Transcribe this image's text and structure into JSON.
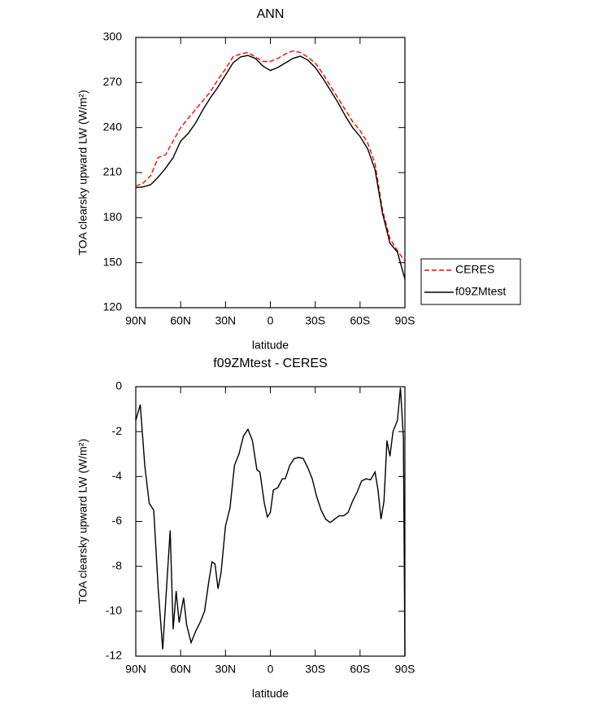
{
  "chart_data": [
    {
      "type": "line",
      "title": "ANN",
      "xlabel": "latitude",
      "ylabel": "TOA clearsky upward LW (W/m²)",
      "x": [
        90,
        85,
        80,
        75,
        70,
        65,
        60,
        55,
        50,
        45,
        40,
        35,
        30,
        25,
        20,
        15,
        10,
        5,
        0,
        -5,
        -10,
        -15,
        -20,
        -25,
        -30,
        -35,
        -40,
        -45,
        -50,
        -55,
        -60,
        -65,
        -70,
        -75,
        -80,
        -85,
        -90
      ],
      "series": [
        {
          "name": "CERES",
          "color": "#ff0000",
          "dashed": true,
          "values": [
            201,
            203,
            208,
            220,
            222,
            231,
            240,
            246,
            252,
            258,
            264,
            272,
            279,
            287,
            289,
            290,
            287,
            284,
            284,
            286,
            289,
            291,
            290,
            287,
            283,
            276,
            268,
            260,
            252,
            244,
            238,
            230,
            216,
            185,
            166,
            158,
            151
          ]
        },
        {
          "name": "f09ZMtest",
          "color": "#000000",
          "dashed": false,
          "values": [
            200,
            200.5,
            202,
            207,
            213,
            220,
            231,
            236,
            243,
            252,
            260,
            267,
            275,
            283,
            287,
            288,
            286,
            281,
            278,
            280,
            283,
            286,
            287.5,
            285,
            280,
            273,
            265,
            257,
            248,
            240,
            234,
            226,
            212,
            183,
            163,
            157,
            139
          ]
        }
      ],
      "xlim": [
        90,
        -90
      ],
      "xticks": [
        {
          "value": 90,
          "label": "90N"
        },
        {
          "value": 60,
          "label": "60N"
        },
        {
          "value": 30,
          "label": "30N"
        },
        0,
        {
          "value": -30,
          "label": "30S"
        },
        {
          "value": -60,
          "label": "60S"
        },
        {
          "value": -90,
          "label": "90S"
        }
      ],
      "ylim": [
        120,
        300
      ],
      "yticks": [
        120,
        150,
        180,
        210,
        240,
        270,
        300
      ],
      "legend": "outside-right"
    },
    {
      "type": "line",
      "title": "f09ZMtest - CERES",
      "xlabel": "latitude",
      "ylabel": "TOA clearsky upward LW (W/m²)",
      "x": [
        90,
        87,
        84,
        81,
        78,
        75,
        72,
        69,
        67,
        65,
        63,
        61,
        58,
        56,
        53,
        50,
        47,
        44,
        41,
        39,
        37,
        35,
        33,
        30,
        27,
        24,
        21,
        18,
        15,
        12,
        9,
        7,
        4,
        2,
        0,
        -2,
        -5,
        -8,
        -10,
        -13,
        -16,
        -19,
        -22,
        -25,
        -28,
        -31,
        -34,
        -37,
        -40,
        -43,
        -46,
        -49,
        -52,
        -55,
        -58,
        -61,
        -64,
        -67,
        -70,
        -72,
        -74,
        -76,
        -78,
        -80,
        -82,
        -85,
        -87,
        -89,
        -90
      ],
      "values": [
        -1.5,
        -0.8,
        -3.5,
        -5.2,
        -5.5,
        -9,
        -11.7,
        -8.5,
        -6.4,
        -10.8,
        -9.1,
        -10.5,
        -9.4,
        -10.6,
        -11.4,
        -10.9,
        -10.5,
        -10,
        -8.6,
        -7.8,
        -7.9,
        -9,
        -8.3,
        -6.2,
        -5.4,
        -3.5,
        -3,
        -2.2,
        -1.9,
        -2.4,
        -3.7,
        -3.8,
        -5.2,
        -5.8,
        -5.6,
        -4.6,
        -4.5,
        -4.1,
        -4.1,
        -3.5,
        -3.2,
        -3.15,
        -3.2,
        -3.6,
        -4.1,
        -4.9,
        -5.5,
        -5.9,
        -6.05,
        -5.9,
        -5.75,
        -5.75,
        -5.6,
        -5.1,
        -4.7,
        -4.2,
        -4.1,
        -4.15,
        -3.8,
        -4.6,
        -5.9,
        -5.1,
        -2.4,
        -3.1,
        -2,
        -1.5,
        -0.05,
        -2.3,
        -12
      ],
      "color": "#000000",
      "xlim": [
        90,
        -90
      ],
      "xticks": [
        {
          "value": 90,
          "label": "90N"
        },
        {
          "value": 60,
          "label": "60N"
        },
        {
          "value": 30,
          "label": "30N"
        },
        0,
        {
          "value": -30,
          "label": "30S"
        },
        {
          "value": -60,
          "label": "60S"
        },
        {
          "value": -90,
          "label": "90S"
        }
      ],
      "ylim": [
        -12,
        0
      ],
      "yticks": [
        -12,
        -10,
        -8,
        -6,
        -4,
        -2,
        0
      ]
    }
  ]
}
